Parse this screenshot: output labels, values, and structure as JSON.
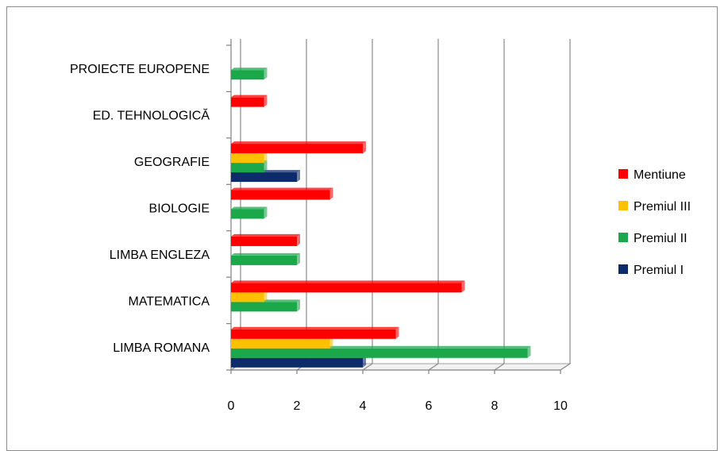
{
  "chart_data": {
    "type": "bar",
    "orientation": "horizontal",
    "categories": [
      "LIMBA ROMANA",
      "MATEMATICA",
      "LIMBA ENGLEZA",
      "BIOLOGIE",
      "GEOGRAFIE",
      "ED. TEHNOLOGICĂ",
      "PROIECTE EUROPENE"
    ],
    "series": [
      {
        "name": "Premiul I",
        "color": "#0d2a6b",
        "values": [
          4,
          0,
          0,
          0,
          2,
          0,
          0
        ]
      },
      {
        "name": "Premiul II",
        "color": "#1aa84a",
        "values": [
          9,
          2,
          2,
          1,
          1,
          0,
          1
        ]
      },
      {
        "name": "Premiul III",
        "color": "#ffc000",
        "values": [
          3,
          1,
          0,
          0,
          1,
          0,
          0
        ]
      },
      {
        "name": "Mentiune",
        "color": "#ff0000",
        "values": [
          5,
          7,
          2,
          3,
          4,
          1,
          0
        ]
      }
    ],
    "xlim": [
      0,
      10
    ],
    "xticks": [
      "0",
      "2",
      "4",
      "6",
      "8",
      "10"
    ],
    "legend_order": [
      "Mentiune",
      "Premiul III",
      "Premiul II",
      "Premiul I"
    ],
    "legend_position": "right",
    "grid": true,
    "style": "3d-clustered-bar",
    "title": "",
    "xlabel": "",
    "ylabel": ""
  }
}
